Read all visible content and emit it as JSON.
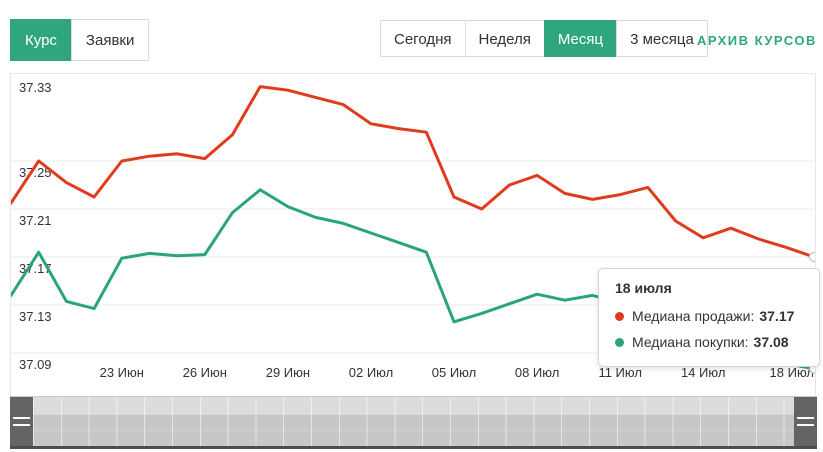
{
  "header": {
    "view_tabs": [
      {
        "label": "Курс",
        "active": true
      },
      {
        "label": "Заявки",
        "active": false
      }
    ],
    "period_buttons": [
      {
        "label": "Сегодня",
        "active": false
      },
      {
        "label": "Неделя",
        "active": false
      },
      {
        "label": "Месяц",
        "active": true
      },
      {
        "label": "3 месяца",
        "active": false
      }
    ],
    "archive_link": "АРХИВ КУРСОВ"
  },
  "colors": {
    "accent_green": "#2fa67e",
    "sell_red": "#e13b1d",
    "buy_green": "#2aa576",
    "grid": "#ebebeb",
    "marker_stroke": "#c2c2c2"
  },
  "tooltip": {
    "title": "18 июля",
    "rows": [
      {
        "label": "Медиана продажи:",
        "value": "37.17",
        "color": "#e13b1d"
      },
      {
        "label": "Медиана покупки:",
        "value": "37.08",
        "color": "#2aa576"
      }
    ]
  },
  "chart_data": {
    "type": "line",
    "title": "",
    "xlabel": "",
    "ylabel": "",
    "y_ticks": [
      37.33,
      37.25,
      37.21,
      37.17,
      37.13,
      37.09
    ],
    "ylim": [
      37.0875,
      37.3225
    ],
    "x_tick_indices": [
      4,
      7,
      10,
      13,
      16,
      19,
      22,
      25,
      29
    ],
    "x_tick_labels": [
      "23 Июн",
      "26 Июн",
      "29 Июн",
      "02 Июл",
      "05 Июл",
      "08 Июл",
      "11 Июл",
      "14 Июл",
      "18 Июл"
    ],
    "grid": true,
    "legend_position": "tooltip-only",
    "series": [
      {
        "name": "Медиана продажи",
        "color": "#e13b1d",
        "values": [
          37.215,
          37.25,
          37.232,
          37.22,
          37.25,
          37.254,
          37.256,
          37.252,
          37.272,
          37.312,
          37.309,
          37.303,
          37.297,
          37.281,
          37.277,
          37.274,
          37.22,
          37.21,
          37.23,
          37.238,
          37.223,
          37.218,
          37.222,
          37.228,
          37.2,
          37.186,
          37.194,
          37.185,
          37.178,
          37.17
        ]
      },
      {
        "name": "Медиана покупки",
        "color": "#2aa576",
        "values": [
          37.138,
          37.174,
          37.133,
          37.127,
          37.169,
          37.173,
          37.171,
          37.172,
          37.207,
          37.226,
          37.212,
          37.203,
          37.198,
          37.19,
          37.182,
          37.174,
          37.116,
          37.123,
          37.131,
          37.139,
          37.134,
          37.138,
          37.132,
          37.125,
          37.11,
          37.098,
          37.09,
          37.085,
          37.081,
          37.077
        ]
      }
    ]
  }
}
